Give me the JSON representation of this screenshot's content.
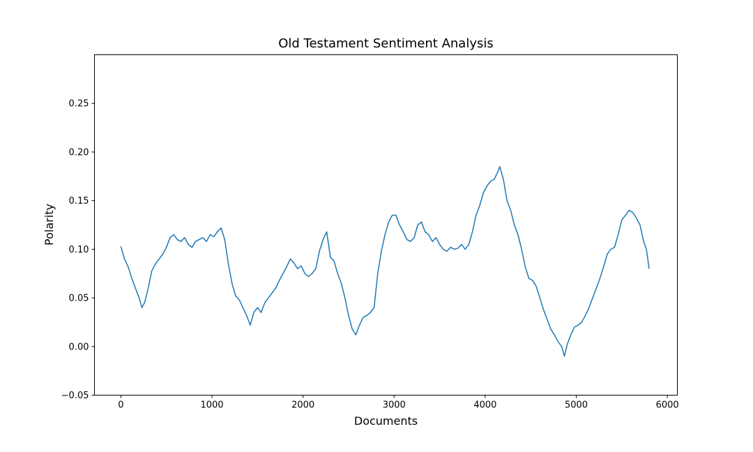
{
  "chart_data": {
    "type": "line",
    "title": "Old Testament Sentiment Analysis",
    "xlabel": "Documents",
    "ylabel": "Polarity",
    "xlim": [
      -290,
      6110
    ],
    "ylim": [
      -0.05,
      0.3
    ],
    "x_ticks": [
      0,
      1000,
      2000,
      3000,
      4000,
      5000,
      6000
    ],
    "x_tick_labels": [
      "0",
      "1000",
      "2000",
      "3000",
      "4000",
      "5000",
      "6000"
    ],
    "y_ticks": [
      -0.05,
      0.0,
      0.05,
      0.1,
      0.15,
      0.2,
      0.25
    ],
    "y_tick_labels": [
      "−0.05",
      "0.00",
      "0.05",
      "0.10",
      "0.15",
      "0.20",
      "0.25"
    ],
    "grid": false,
    "series": [
      {
        "color": "#1f77b4",
        "points": [
          [
            0,
            0.103
          ],
          [
            40,
            0.09
          ],
          [
            80,
            0.082
          ],
          [
            120,
            0.07
          ],
          [
            160,
            0.06
          ],
          [
            200,
            0.05
          ],
          [
            230,
            0.04
          ],
          [
            260,
            0.045
          ],
          [
            300,
            0.06
          ],
          [
            340,
            0.078
          ],
          [
            380,
            0.085
          ],
          [
            420,
            0.09
          ],
          [
            460,
            0.095
          ],
          [
            500,
            0.102
          ],
          [
            540,
            0.112
          ],
          [
            580,
            0.115
          ],
          [
            620,
            0.11
          ],
          [
            660,
            0.108
          ],
          [
            700,
            0.112
          ],
          [
            740,
            0.105
          ],
          [
            780,
            0.102
          ],
          [
            820,
            0.108
          ],
          [
            860,
            0.11
          ],
          [
            900,
            0.112
          ],
          [
            940,
            0.108
          ],
          [
            980,
            0.115
          ],
          [
            1020,
            0.113
          ],
          [
            1060,
            0.118
          ],
          [
            1100,
            0.122
          ],
          [
            1140,
            0.11
          ],
          [
            1180,
            0.085
          ],
          [
            1220,
            0.065
          ],
          [
            1260,
            0.052
          ],
          [
            1300,
            0.048
          ],
          [
            1340,
            0.04
          ],
          [
            1380,
            0.032
          ],
          [
            1420,
            0.022
          ],
          [
            1460,
            0.035
          ],
          [
            1500,
            0.04
          ],
          [
            1540,
            0.035
          ],
          [
            1580,
            0.045
          ],
          [
            1620,
            0.05
          ],
          [
            1660,
            0.055
          ],
          [
            1700,
            0.06
          ],
          [
            1740,
            0.068
          ],
          [
            1780,
            0.075
          ],
          [
            1820,
            0.082
          ],
          [
            1860,
            0.09
          ],
          [
            1900,
            0.086
          ],
          [
            1940,
            0.08
          ],
          [
            1980,
            0.083
          ],
          [
            2020,
            0.075
          ],
          [
            2060,
            0.072
          ],
          [
            2100,
            0.075
          ],
          [
            2140,
            0.08
          ],
          [
            2180,
            0.098
          ],
          [
            2220,
            0.11
          ],
          [
            2260,
            0.118
          ],
          [
            2300,
            0.092
          ],
          [
            2340,
            0.088
          ],
          [
            2380,
            0.075
          ],
          [
            2420,
            0.065
          ],
          [
            2460,
            0.05
          ],
          [
            2500,
            0.032
          ],
          [
            2540,
            0.018
          ],
          [
            2580,
            0.012
          ],
          [
            2620,
            0.022
          ],
          [
            2660,
            0.03
          ],
          [
            2700,
            0.032
          ],
          [
            2740,
            0.035
          ],
          [
            2780,
            0.04
          ],
          [
            2820,
            0.075
          ],
          [
            2860,
            0.098
          ],
          [
            2900,
            0.115
          ],
          [
            2940,
            0.128
          ],
          [
            2980,
            0.135
          ],
          [
            3020,
            0.135
          ],
          [
            3060,
            0.125
          ],
          [
            3100,
            0.118
          ],
          [
            3140,
            0.11
          ],
          [
            3180,
            0.108
          ],
          [
            3220,
            0.112
          ],
          [
            3260,
            0.125
          ],
          [
            3300,
            0.128
          ],
          [
            3340,
            0.118
          ],
          [
            3380,
            0.115
          ],
          [
            3420,
            0.108
          ],
          [
            3460,
            0.112
          ],
          [
            3500,
            0.105
          ],
          [
            3540,
            0.1
          ],
          [
            3580,
            0.098
          ],
          [
            3620,
            0.102
          ],
          [
            3660,
            0.1
          ],
          [
            3700,
            0.101
          ],
          [
            3740,
            0.105
          ],
          [
            3780,
            0.1
          ],
          [
            3820,
            0.105
          ],
          [
            3860,
            0.118
          ],
          [
            3900,
            0.135
          ],
          [
            3940,
            0.145
          ],
          [
            3980,
            0.158
          ],
          [
            4020,
            0.165
          ],
          [
            4060,
            0.17
          ],
          [
            4100,
            0.172
          ],
          [
            4140,
            0.18
          ],
          [
            4160,
            0.185
          ],
          [
            4200,
            0.172
          ],
          [
            4240,
            0.15
          ],
          [
            4280,
            0.14
          ],
          [
            4320,
            0.125
          ],
          [
            4360,
            0.115
          ],
          [
            4400,
            0.1
          ],
          [
            4440,
            0.082
          ],
          [
            4480,
            0.07
          ],
          [
            4520,
            0.068
          ],
          [
            4560,
            0.062
          ],
          [
            4600,
            0.05
          ],
          [
            4640,
            0.038
          ],
          [
            4680,
            0.028
          ],
          [
            4720,
            0.018
          ],
          [
            4760,
            0.012
          ],
          [
            4800,
            0.005
          ],
          [
            4840,
            0.0
          ],
          [
            4870,
            -0.01
          ],
          [
            4900,
            0.002
          ],
          [
            4940,
            0.012
          ],
          [
            4980,
            0.02
          ],
          [
            5020,
            0.022
          ],
          [
            5060,
            0.025
          ],
          [
            5100,
            0.032
          ],
          [
            5140,
            0.04
          ],
          [
            5180,
            0.05
          ],
          [
            5220,
            0.06
          ],
          [
            5260,
            0.07
          ],
          [
            5300,
            0.082
          ],
          [
            5340,
            0.095
          ],
          [
            5380,
            0.1
          ],
          [
            5420,
            0.102
          ],
          [
            5460,
            0.115
          ],
          [
            5500,
            0.13
          ],
          [
            5540,
            0.135
          ],
          [
            5580,
            0.14
          ],
          [
            5620,
            0.138
          ],
          [
            5660,
            0.132
          ],
          [
            5700,
            0.125
          ],
          [
            5740,
            0.108
          ],
          [
            5770,
            0.1
          ],
          [
            5800,
            0.08
          ]
        ]
      }
    ]
  }
}
